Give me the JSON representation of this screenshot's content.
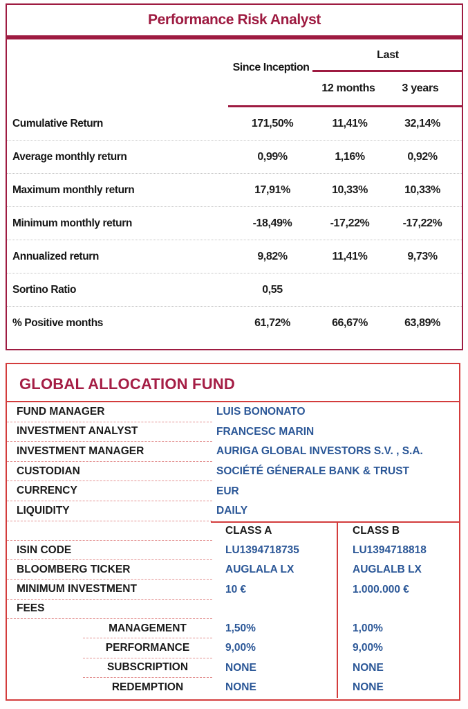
{
  "performance_table": {
    "title": "Performance Risk Analyst",
    "col_since_inception": "Since Inception",
    "col_last": "Last",
    "col_12_months": "12 months",
    "col_3_years": "3 years",
    "rows": [
      {
        "label": "Cumulative Return",
        "v1": "171,50%",
        "v2": "11,41%",
        "v3": "32,14%"
      },
      {
        "label": "Average monthly return",
        "v1": "0,99%",
        "v2": "1,16%",
        "v3": "0,92%"
      },
      {
        "label": "Maximum monthly return",
        "v1": "17,91%",
        "v2": "10,33%",
        "v3": "10,33%"
      },
      {
        "label": "Minimum monthly return",
        "v1": "-18,49%",
        "v2": "-17,22%",
        "v3": "-17,22%"
      },
      {
        "label": "Annualized return",
        "v1": "9,82%",
        "v2": "11,41%",
        "v3": "9,73%"
      },
      {
        "label": "Sortino Ratio",
        "v1": "0,55",
        "v2": "",
        "v3": ""
      },
      {
        "label": "% Positive months",
        "v1": "61,72%",
        "v2": "66,67%",
        "v3": "63,89%"
      }
    ]
  },
  "fund": {
    "title": "GLOBAL ALLOCATION FUND",
    "info_rows": [
      {
        "label": "FUND MANAGER",
        "value": "LUIS BONONATO"
      },
      {
        "label": "INVESTMENT ANALYST",
        "value": "FRANCESC MARIN"
      },
      {
        "label": "INVESTMENT MANAGER",
        "value": "AURIGA GLOBAL INVESTORS S.V. , S.A."
      },
      {
        "label": "CUSTODIAN",
        "value": "SOCIÉTÉ GÉNERALE BANK & TRUST"
      },
      {
        "label": "CURRENCY",
        "value": "EUR"
      },
      {
        "label": "LIQUIDITY",
        "value": "DAILY"
      }
    ],
    "share_classes": {
      "class_a_header": "CLASS A",
      "class_b_header": "CLASS B",
      "rows": [
        {
          "label": "ISIN CODE",
          "a": "LU1394718735",
          "b": "LU1394718818"
        },
        {
          "label": "BLOOMBERG TICKER",
          "a": "AUGLALA LX",
          "b": "AUGLALB LX"
        },
        {
          "label": "MINIMUM INVESTMENT",
          "a": "10 €",
          "b": "1.000.000 €"
        },
        {
          "label": "FEES",
          "a": "",
          "b": ""
        },
        {
          "label": "MANAGEMENT",
          "a": "1,50%",
          "b": "1,00%"
        },
        {
          "label": "PERFORMANCE",
          "a": "9,00%",
          "b": "9,00%"
        },
        {
          "label": "SUBSCRIPTION",
          "a": "NONE",
          "b": "NONE"
        },
        {
          "label": "REDEMPTION",
          "a": "NONE",
          "b": "NONE"
        }
      ]
    }
  },
  "colors": {
    "maroon": "#9E1B41",
    "red_border": "#D33C3C",
    "blue_value": "#2B5797"
  }
}
